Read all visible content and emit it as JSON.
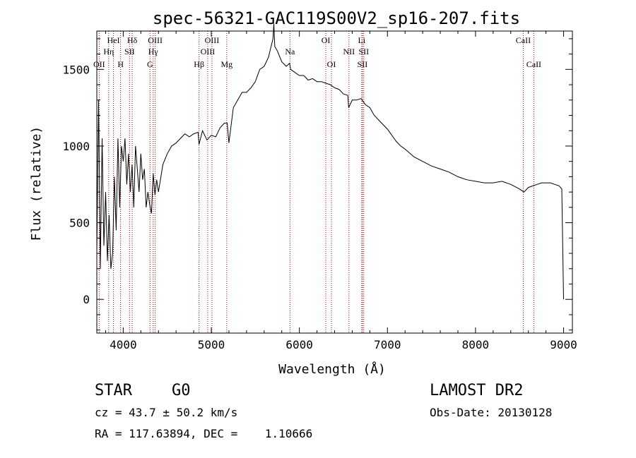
{
  "title": "spec-56321-GAC119S00V2_sp16-207.fits",
  "chart_data": {
    "type": "line",
    "xlabel": "Wavelength (Å)",
    "ylabel": "Flux (relative)",
    "xlim": [
      3700,
      9100
    ],
    "ylim": [
      -220,
      1750
    ],
    "x_ticks": [
      4000,
      5000,
      6000,
      7000,
      8000,
      9000
    ],
    "y_ticks": [
      0,
      500,
      1000,
      1500
    ],
    "x_tick_labels": [
      "4000",
      "5000",
      "6000",
      "7000",
      "8000",
      "9000"
    ],
    "y_tick_labels": [
      "0",
      "500",
      "1000",
      "1500"
    ],
    "grid": false,
    "legend": "none",
    "series": [
      {
        "x": [
          3700,
          3720,
          3740,
          3760,
          3780,
          3800,
          3820,
          3840,
          3860,
          3880,
          3900,
          3920,
          3940,
          3960,
          3980,
          4000,
          4020,
          4040,
          4060,
          4080,
          4100,
          4120,
          4140,
          4160,
          4180,
          4200,
          4220,
          4240,
          4260,
          4280,
          4300,
          4320,
          4340,
          4360,
          4380,
          4400,
          4450,
          4500,
          4550,
          4600,
          4650,
          4700,
          4750,
          4800,
          4850,
          4860,
          4900,
          4950,
          5000,
          5050,
          5100,
          5150,
          5180,
          5200,
          5250,
          5300,
          5350,
          5400,
          5450,
          5500,
          5550,
          5600,
          5650,
          5700,
          5710,
          5720,
          5750,
          5800,
          5850,
          5890,
          5900,
          5950,
          6000,
          6050,
          6100,
          6150,
          6200,
          6250,
          6300,
          6350,
          6400,
          6450,
          6500,
          6550,
          6560,
          6600,
          6650,
          6700,
          6750,
          6800,
          6850,
          6900,
          6950,
          7000,
          7050,
          7100,
          7150,
          7200,
          7300,
          7400,
          7500,
          7600,
          7700,
          7800,
          7900,
          8000,
          8100,
          8200,
          8300,
          8400,
          8500,
          8550,
          8600,
          8650,
          8700,
          8750,
          8800,
          8850,
          8900,
          8950,
          8980,
          9000
        ],
        "y": [
          300,
          1300,
          200,
          1050,
          350,
          700,
          250,
          550,
          200,
          300,
          800,
          450,
          1050,
          600,
          1000,
          900,
          1050,
          750,
          950,
          700,
          880,
          600,
          1000,
          850,
          700,
          950,
          780,
          850,
          600,
          700,
          620,
          560,
          820,
          680,
          780,
          700,
          880,
          950,
          1000,
          1020,
          1050,
          1080,
          1060,
          1080,
          1090,
          1010,
          1100,
          1040,
          1070,
          1060,
          1120,
          1150,
          1150,
          1020,
          1250,
          1300,
          1350,
          1350,
          1380,
          1420,
          1500,
          1520,
          1580,
          1700,
          1800,
          1650,
          1620,
          1550,
          1520,
          1540,
          1500,
          1480,
          1460,
          1460,
          1430,
          1440,
          1420,
          1420,
          1410,
          1400,
          1380,
          1370,
          1340,
          1330,
          1250,
          1300,
          1300,
          1310,
          1270,
          1250,
          1200,
          1170,
          1140,
          1110,
          1070,
          1030,
          1000,
          980,
          930,
          900,
          870,
          850,
          830,
          800,
          780,
          770,
          760,
          760,
          770,
          750,
          720,
          700,
          730,
          740,
          750,
          760,
          760,
          760,
          750,
          740,
          720,
          0
        ]
      }
    ],
    "line_markers": [
      {
        "wavelength": 3727,
        "label": "OII",
        "row": 3
      },
      {
        "wavelength": 3835,
        "label": "Hη",
        "row": 2
      },
      {
        "wavelength": 3889,
        "label": "HeI",
        "row": 1
      },
      {
        "wavelength": 3970,
        "label": "H",
        "row": 3
      },
      {
        "wavelength": 4072,
        "label": "SII",
        "row": 2
      },
      {
        "wavelength": 4102,
        "label": "Hδ",
        "row": 1
      },
      {
        "wavelength": 4304,
        "label": "G",
        "row": 3
      },
      {
        "wavelength": 4340,
        "label": "Hγ",
        "row": 2
      },
      {
        "wavelength": 4363,
        "label": "OIII",
        "row": 1
      },
      {
        "wavelength": 4861,
        "label": "Hβ",
        "row": 3
      },
      {
        "wavelength": 4959,
        "label": "OIII",
        "row": 2
      },
      {
        "wavelength": 5007,
        "label": "OIII",
        "row": 1
      },
      {
        "wavelength": 5175,
        "label": "Mg",
        "row": 3
      },
      {
        "wavelength": 5893,
        "label": "Na",
        "row": 2
      },
      {
        "wavelength": 6300,
        "label": "OI",
        "row": 1
      },
      {
        "wavelength": 6364,
        "label": "OI",
        "row": 3
      },
      {
        "wavelength": 6563,
        "label": "NII",
        "row": 2
      },
      {
        "wavelength": 6708,
        "label": "Li",
        "row": 1
      },
      {
        "wavelength": 6716,
        "label": "SII",
        "row": 3
      },
      {
        "wavelength": 6731,
        "label": "SII",
        "row": 2
      },
      {
        "wavelength": 8542,
        "label": "CaII",
        "row": 1
      },
      {
        "wavelength": 8662,
        "label": "CaII",
        "row": 3
      }
    ],
    "colors": {
      "spectrum": "#000000",
      "line_markers": "#a00000",
      "axes": "#000000"
    }
  },
  "footer": {
    "object_class": "STAR",
    "subclass": "G0",
    "survey": "LAMOST DR2",
    "redshift": "cz = 43.7 ± 50.2 km/s",
    "obs_date": "Obs-Date: 20130128",
    "coords": "RA = 117.63894, DEC =    1.10666"
  }
}
